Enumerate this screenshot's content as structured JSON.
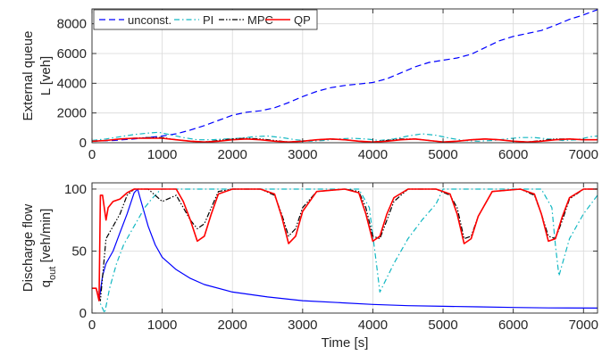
{
  "chart_data": [
    {
      "type": "line",
      "ylabel_lines": [
        "External queue",
        "L [veh]"
      ],
      "xlabel": "",
      "xlim": [
        0,
        7200
      ],
      "ylim": [
        0,
        9000
      ],
      "xticks": [
        0,
        1000,
        2000,
        3000,
        4000,
        5000,
        6000,
        7000
      ],
      "yticks": [
        0,
        2000,
        4000,
        6000,
        8000
      ],
      "grid": true,
      "legend": {
        "placement": "top-left",
        "entries": [
          "unconst.",
          "PI",
          "MPC",
          "QP"
        ]
      },
      "series": [
        {
          "name": "unconst.",
          "color": "#0000ff",
          "dash": "dashed",
          "x": [
            0,
            300,
            600,
            900,
            1000,
            1200,
            1400,
            1600,
            1800,
            2000,
            2200,
            2400,
            2600,
            2800,
            3000,
            3200,
            3400,
            3600,
            3800,
            4000,
            4200,
            4400,
            4600,
            4800,
            5000,
            5200,
            5400,
            5600,
            5800,
            6000,
            6200,
            6400,
            6600,
            6800,
            7000,
            7200
          ],
          "y": [
            100,
            150,
            250,
            400,
            450,
            600,
            850,
            1150,
            1500,
            1850,
            2050,
            2150,
            2350,
            2700,
            3100,
            3450,
            3700,
            3850,
            3950,
            4050,
            4300,
            4700,
            5100,
            5400,
            5550,
            5700,
            5950,
            6400,
            6850,
            7150,
            7350,
            7550,
            7900,
            8300,
            8600,
            8950
          ]
        },
        {
          "name": "PI",
          "color": "#12b8c2",
          "dash": "dashdot",
          "x": [
            0,
            200,
            400,
            600,
            800,
            950,
            1100,
            1300,
            1500,
            1700,
            1900,
            2100,
            2300,
            2500,
            2700,
            2900,
            3100,
            3300,
            3500,
            3700,
            3900,
            4100,
            4300,
            4500,
            4700,
            4900,
            5100,
            5300,
            5500,
            5700,
            5900,
            6100,
            6300,
            6500,
            6700,
            6900,
            7100,
            7200
          ],
          "y": [
            150,
            250,
            400,
            550,
            650,
            700,
            550,
            350,
            200,
            200,
            250,
            300,
            400,
            450,
            350,
            200,
            100,
            150,
            250,
            300,
            250,
            150,
            250,
            450,
            600,
            500,
            300,
            150,
            100,
            150,
            250,
            350,
            350,
            250,
            150,
            200,
            400,
            450
          ]
        },
        {
          "name": "MPC",
          "color": "#000000",
          "dash": "dashdotdot",
          "x": [
            0,
            200,
            400,
            600,
            800,
            1000,
            1200,
            1400,
            1600,
            1800,
            2000,
            2200,
            2400,
            2600,
            2800,
            3000,
            3200,
            3400,
            3600,
            3800,
            4000,
            4200,
            4400,
            4600,
            4800,
            5000,
            5200,
            5400,
            5600,
            5800,
            6000,
            6200,
            6400,
            6600,
            6800,
            7000,
            7200
          ],
          "y": [
            100,
            150,
            250,
            300,
            350,
            350,
            200,
            100,
            50,
            150,
            250,
            300,
            250,
            150,
            50,
            100,
            200,
            250,
            200,
            100,
            50,
            150,
            250,
            250,
            150,
            50,
            100,
            200,
            250,
            200,
            100,
            50,
            150,
            250,
            250,
            200,
            200
          ]
        },
        {
          "name": "QP",
          "color": "#ff0000",
          "dash": "solid",
          "x": [
            0,
            200,
            400,
            600,
            800,
            1000,
            1200,
            1400,
            1600,
            1800,
            2000,
            2200,
            2400,
            2600,
            2800,
            3000,
            3200,
            3400,
            3600,
            3800,
            4000,
            4200,
            4400,
            4600,
            4800,
            5000,
            5200,
            5400,
            5600,
            5800,
            6000,
            6200,
            6400,
            6600,
            6800,
            7000,
            7200
          ],
          "y": [
            100,
            150,
            250,
            300,
            300,
            300,
            200,
            100,
            50,
            100,
            200,
            250,
            200,
            100,
            50,
            100,
            200,
            250,
            200,
            100,
            50,
            100,
            200,
            250,
            150,
            50,
            100,
            200,
            250,
            200,
            100,
            50,
            100,
            200,
            250,
            200,
            200
          ]
        }
      ]
    },
    {
      "type": "line",
      "ylabel_lines": [
        "Discharge flow",
        "q_out [veh/min]"
      ],
      "xlabel": "Time [s]",
      "xlim": [
        0,
        7200
      ],
      "ylim": [
        0,
        105
      ],
      "xticks": [
        0,
        1000,
        2000,
        3000,
        4000,
        5000,
        6000,
        7000
      ],
      "yticks": [
        0,
        50,
        100
      ],
      "grid": true,
      "series": [
        {
          "name": "unconst.",
          "color": "#0000ff",
          "dash": "solid",
          "x": [
            0,
            60,
            100,
            150,
            200,
            300,
            400,
            500,
            600,
            650,
            700,
            800,
            900,
            1000,
            1200,
            1400,
            1600,
            2000,
            2500,
            3000,
            3500,
            4000,
            4500,
            5000,
            5500,
            6000,
            6500,
            7200
          ],
          "y": [
            20,
            20,
            10,
            30,
            40,
            50,
            65,
            80,
            97,
            100,
            90,
            70,
            55,
            45,
            35,
            28,
            23,
            17,
            13,
            10,
            8.5,
            7,
            6,
            5.5,
            5,
            4.5,
            4.2,
            4
          ]
        },
        {
          "name": "PI",
          "color": "#12b8c2",
          "dash": "dashdot",
          "x": [
            0,
            60,
            100,
            180,
            250,
            350,
            450,
            550,
            650,
            750,
            850,
            950,
            1000,
            1500,
            2000,
            2500,
            3000,
            3500,
            3800,
            3950,
            4050,
            4100,
            4300,
            4500,
            4700,
            4900,
            5000,
            5500,
            6000,
            6400,
            6550,
            6600,
            6650,
            6800,
            7000,
            7200
          ],
          "y": [
            20,
            20,
            10,
            0,
            20,
            40,
            55,
            65,
            75,
            85,
            92,
            98,
            100,
            100,
            100,
            100,
            100,
            100,
            100,
            85,
            40,
            17,
            40,
            60,
            75,
            88,
            100,
            100,
            100,
            100,
            85,
            55,
            30,
            60,
            80,
            95
          ]
        },
        {
          "name": "MPC",
          "color": "#000000",
          "dash": "dashdotdot",
          "x": [
            0,
            60,
            120,
            200,
            300,
            400,
            500,
            600,
            800,
            1000,
            1200,
            1300,
            1400,
            1500,
            1600,
            1700,
            1800,
            2000,
            2400,
            2600,
            2700,
            2800,
            2900,
            3000,
            3200,
            3600,
            3800,
            3900,
            4000,
            4100,
            4200,
            4300,
            4500,
            4900,
            5100,
            5200,
            5300,
            5400,
            5500,
            5700,
            6100,
            6300,
            6400,
            6500,
            6600,
            6700,
            6800,
            7000,
            7200
          ],
          "y": [
            20,
            20,
            10,
            60,
            70,
            80,
            95,
            100,
            100,
            90,
            95,
            85,
            75,
            68,
            72,
            85,
            98,
            100,
            100,
            95,
            80,
            62,
            68,
            85,
            98,
            100,
            98,
            85,
            62,
            60,
            75,
            90,
            100,
            100,
            95,
            85,
            60,
            62,
            78,
            98,
            100,
            95,
            80,
            62,
            60,
            75,
            92,
            100,
            100
          ]
        },
        {
          "name": "QP",
          "color": "#ff0000",
          "dash": "solid",
          "x": [
            0,
            60,
            100,
            120,
            150,
            200,
            230,
            300,
            400,
            500,
            600,
            800,
            1000,
            1200,
            1300,
            1400,
            1500,
            1600,
            1700,
            1800,
            2000,
            2400,
            2600,
            2700,
            2800,
            2900,
            3000,
            3200,
            3600,
            3800,
            3900,
            4000,
            4100,
            4200,
            4300,
            4500,
            4900,
            5100,
            5200,
            5300,
            5400,
            5500,
            5700,
            6100,
            6300,
            6400,
            6500,
            6600,
            6700,
            6800,
            7000,
            7200
          ],
          "y": [
            20,
            20,
            10,
            95,
            95,
            75,
            85,
            90,
            92,
            97,
            100,
            100,
            100,
            100,
            90,
            75,
            58,
            62,
            80,
            96,
            100,
            100,
            96,
            78,
            56,
            62,
            82,
            98,
            100,
            97,
            80,
            58,
            62,
            80,
            93,
            100,
            100,
            96,
            80,
            56,
            60,
            78,
            98,
            100,
            96,
            80,
            58,
            60,
            78,
            93,
            100,
            100
          ]
        }
      ]
    }
  ]
}
